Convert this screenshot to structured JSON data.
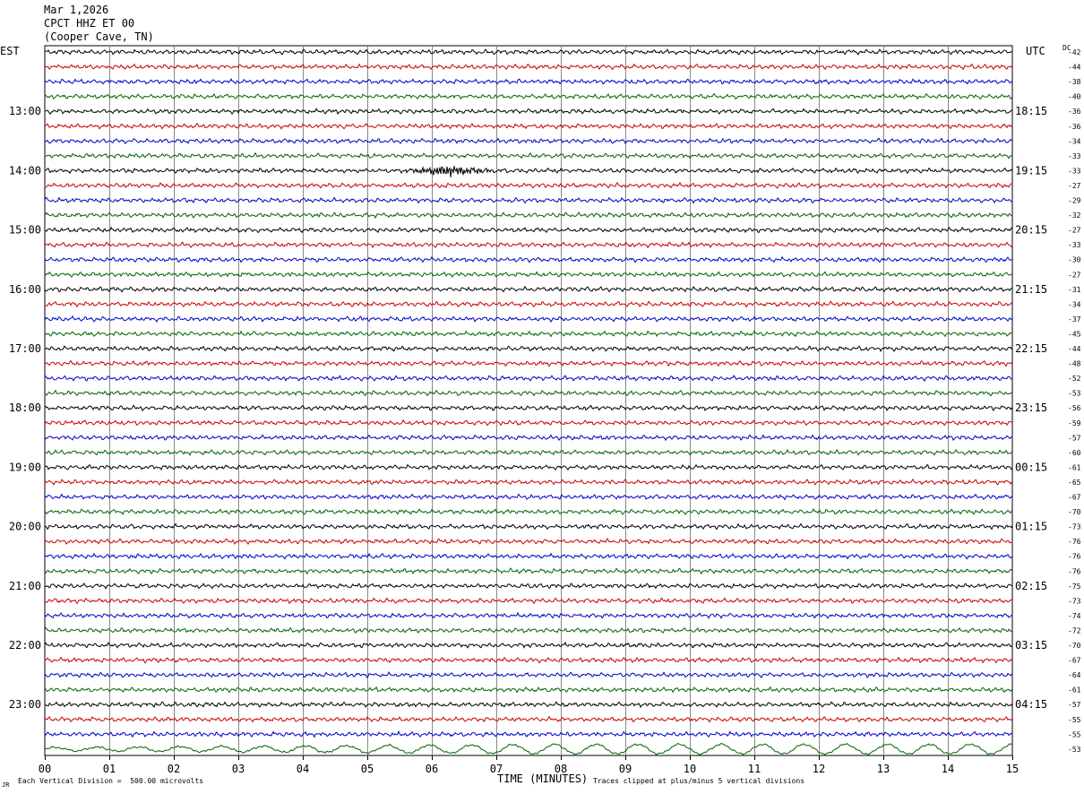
{
  "header": {
    "date": "Mar 1,2026",
    "station": "CPCT HHZ ET 00",
    "location": "(Cooper Cave, TN)"
  },
  "axes": {
    "left_zone": "EST",
    "right_zone": "UTC",
    "dc_label": "DC",
    "x_title": "TIME (MINUTES)"
  },
  "footer": {
    "scale": "Each Vertical Division =  500.00 microvolts",
    "clip": "Traces clipped at plus/minus 5 vertical divisions",
    "mark": "JR"
  },
  "chart_data": {
    "type": "line",
    "title": "",
    "xlabel": "TIME (MINUTES)",
    "ylabel": "",
    "xlim": [
      0,
      15
    ],
    "x_ticks": [
      "00",
      "01",
      "02",
      "03",
      "04",
      "05",
      "06",
      "07",
      "08",
      "09",
      "10",
      "11",
      "12",
      "13",
      "14",
      "15"
    ],
    "grid": true,
    "trace_colors": [
      "#000000",
      "#cc0000",
      "#0000cc",
      "#006600"
    ],
    "rows_per_hour": 4,
    "left_hour_labels": [
      "13:00",
      "14:00",
      "15:00",
      "16:00",
      "17:00",
      "18:00",
      "19:00",
      "20:00",
      "21:00",
      "22:00",
      "23:00"
    ],
    "right_hour_labels": [
      "18:15",
      "19:15",
      "20:15",
      "21:15",
      "22:15",
      "23:15",
      "00:15",
      "01:15",
      "02:15",
      "03:15",
      "04:15"
    ],
    "dc_offsets": [
      -42,
      -44,
      -38,
      -40,
      -36,
      -36,
      -34,
      -33,
      -33,
      -27,
      -29,
      -32,
      -27,
      -33,
      -30,
      -27,
      -31,
      -34,
      -37,
      -45,
      -44,
      -48,
      -52,
      -53,
      -56,
      -59,
      -57,
      -60,
      -61,
      -65,
      -67,
      -70,
      -73,
      -76,
      -76,
      -76,
      -75,
      -73,
      -74,
      -72,
      -70,
      -67,
      -64,
      -61,
      -57,
      -55,
      -55,
      -53
    ],
    "events": [
      {
        "row": 8,
        "minute_start": 5.5,
        "minute_end": 7.0,
        "amplitude_divisions": 0.9
      },
      {
        "row": 47,
        "minute_start": 0,
        "minute_end": 15,
        "amplitude_divisions": 2.2
      }
    ]
  }
}
